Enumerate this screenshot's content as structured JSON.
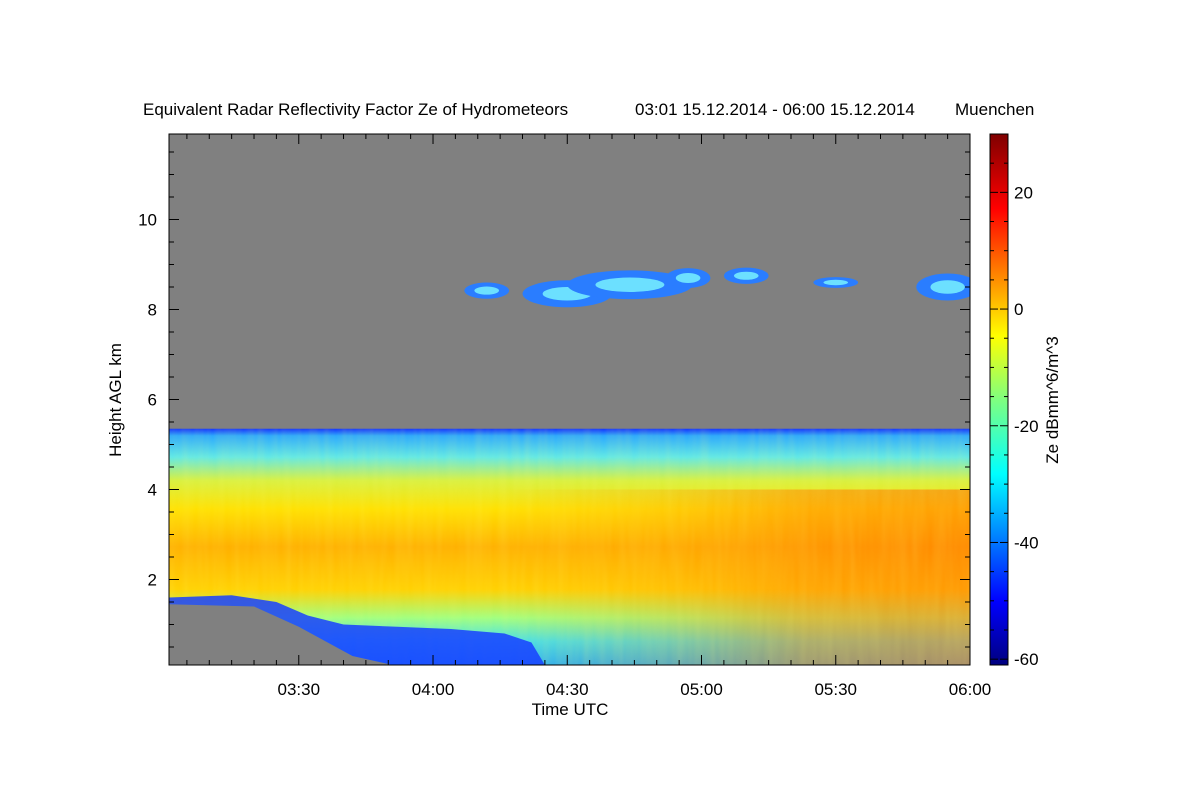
{
  "chart_data": {
    "type": "heatmap",
    "title": "Equivalent Radar Reflectivity Factor Ze of Hydrometeors",
    "time_range": "03:01 15.12.2014 - 06:00 15.12.2014",
    "location": "Muenchen",
    "xlabel": "Time UTC",
    "ylabel": "Height AGL km",
    "colorbar_label": "Ze dBmm^6/m^3",
    "x_range_min": [
      181,
      360
    ],
    "y_range_km": [
      0.1,
      11.9
    ],
    "x_ticks": [
      {
        "minutes": 210,
        "label": "03:30"
      },
      {
        "minutes": 240,
        "label": "04:00"
      },
      {
        "minutes": 270,
        "label": "04:30"
      },
      {
        "minutes": 300,
        "label": "05:00"
      },
      {
        "minutes": 330,
        "label": "05:30"
      },
      {
        "minutes": 360,
        "label": "06:00"
      }
    ],
    "y_ticks": [
      {
        "value": 2,
        "label": "2"
      },
      {
        "value": 4,
        "label": "4"
      },
      {
        "value": 6,
        "label": "6"
      },
      {
        "value": 8,
        "label": "8"
      },
      {
        "value": 10,
        "label": "10"
      }
    ],
    "colorbar_range": [
      -61,
      30
    ],
    "colorbar_ticks": [
      {
        "value": 20,
        "label": "20"
      },
      {
        "value": 0,
        "label": "0"
      },
      {
        "value": -20,
        "label": "-20"
      },
      {
        "value": -40,
        "label": "-40"
      },
      {
        "value": -60,
        "label": "-60"
      }
    ],
    "background_color": "#808080",
    "regions": [
      {
        "name": "main-cloud",
        "x_min": [
          181,
          360
        ],
        "y_km": [
          0.1,
          5.35
        ],
        "ze_dbz": [
          -45,
          5
        ]
      },
      {
        "name": "cirrus-layer",
        "x_min": [
          251,
          360
        ],
        "y_km": [
          7.8,
          9.1
        ],
        "ze_dbz": [
          -40,
          -25
        ]
      }
    ]
  }
}
